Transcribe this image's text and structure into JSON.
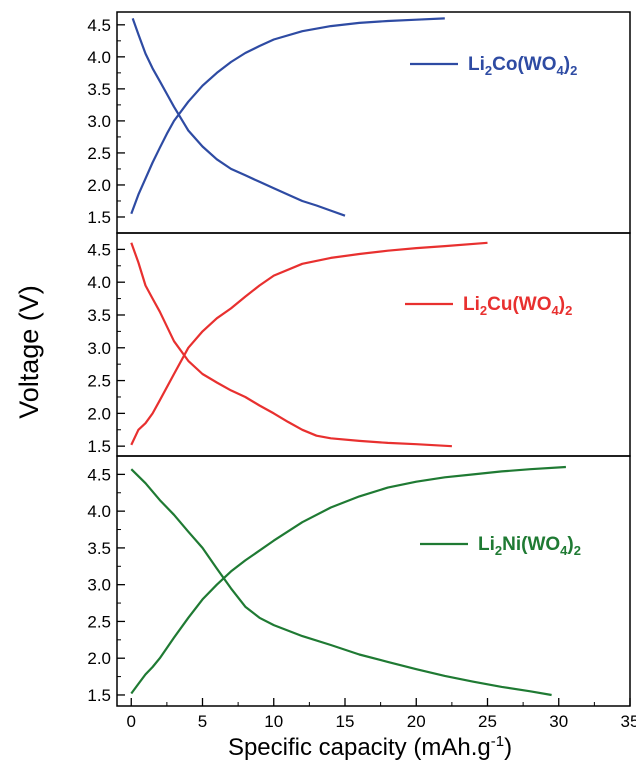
{
  "chart_data": [
    {
      "type": "line",
      "legend": {
        "text": "Li2Co(WO4)2",
        "parts": [
          "Li",
          "2",
          "Co(WO",
          "4",
          ")",
          "2"
        ],
        "position": "top-right"
      },
      "color": "#2e4ba3",
      "xlim": [
        -1,
        35
      ],
      "ylim": [
        1.25,
        4.7
      ],
      "y_ticks": [
        "1.5",
        "2.0",
        "2.5",
        "3.0",
        "3.5",
        "4.0",
        "4.5"
      ],
      "series": [
        {
          "points": [
            [
              0,
              1.55
            ],
            [
              0.5,
              1.85
            ],
            [
              1,
              2.1
            ],
            [
              1.5,
              2.35
            ],
            [
              2,
              2.58
            ],
            [
              2.5,
              2.8
            ],
            [
              3,
              3.0
            ],
            [
              4,
              3.3
            ],
            [
              5,
              3.55
            ],
            [
              6,
              3.75
            ],
            [
              7,
              3.92
            ],
            [
              8,
              4.06
            ],
            [
              9,
              4.17
            ],
            [
              10,
              4.27
            ],
            [
              12,
              4.4
            ],
            [
              14,
              4.48
            ],
            [
              16,
              4.53
            ],
            [
              18,
              4.56
            ],
            [
              20,
              4.58
            ],
            [
              22,
              4.6
            ]
          ]
        },
        {
          "points": [
            [
              0.1,
              4.6
            ],
            [
              0.5,
              4.35
            ],
            [
              1,
              4.05
            ],
            [
              1.5,
              3.82
            ],
            [
              2,
              3.62
            ],
            [
              2.5,
              3.42
            ],
            [
              3,
              3.22
            ],
            [
              4,
              2.85
            ],
            [
              5,
              2.6
            ],
            [
              6,
              2.4
            ],
            [
              7,
              2.25
            ],
            [
              8,
              2.15
            ],
            [
              9,
              2.05
            ],
            [
              10,
              1.95
            ],
            [
              11,
              1.85
            ],
            [
              12,
              1.75
            ],
            [
              13,
              1.68
            ],
            [
              14,
              1.6
            ],
            [
              15,
              1.52
            ]
          ]
        }
      ]
    },
    {
      "type": "line",
      "legend": {
        "text": "Li2Cu(WO4)2",
        "parts": [
          "Li",
          "2",
          "Cu(WO",
          "4",
          ")",
          "2"
        ],
        "position": "right"
      },
      "color": "#e8302f",
      "xlim": [
        -1,
        35
      ],
      "ylim": [
        1.35,
        4.75
      ],
      "y_ticks": [
        "1.5",
        "2.0",
        "2.5",
        "3.0",
        "3.5",
        "4.0",
        "4.5"
      ],
      "series": [
        {
          "points": [
            [
              0,
              1.52
            ],
            [
              0.5,
              1.75
            ],
            [
              1,
              1.85
            ],
            [
              1.5,
              2.0
            ],
            [
              2,
              2.2
            ],
            [
              3,
              2.6
            ],
            [
              4,
              3.0
            ],
            [
              5,
              3.25
            ],
            [
              6,
              3.45
            ],
            [
              7,
              3.6
            ],
            [
              8,
              3.78
            ],
            [
              9,
              3.95
            ],
            [
              10,
              4.1
            ],
            [
              12,
              4.28
            ],
            [
              14,
              4.37
            ],
            [
              16,
              4.43
            ],
            [
              18,
              4.48
            ],
            [
              20,
              4.52
            ],
            [
              22,
              4.55
            ],
            [
              25,
              4.6
            ]
          ]
        },
        {
          "points": [
            [
              0,
              4.6
            ],
            [
              0.5,
              4.3
            ],
            [
              1,
              3.95
            ],
            [
              1.5,
              3.75
            ],
            [
              2,
              3.55
            ],
            [
              3,
              3.1
            ],
            [
              4,
              2.8
            ],
            [
              5,
              2.6
            ],
            [
              6,
              2.47
            ],
            [
              7,
              2.35
            ],
            [
              8,
              2.25
            ],
            [
              9,
              2.12
            ],
            [
              10,
              2.0
            ],
            [
              11,
              1.87
            ],
            [
              12,
              1.75
            ],
            [
              13,
              1.66
            ],
            [
              14,
              1.62
            ],
            [
              16,
              1.58
            ],
            [
              18,
              1.55
            ],
            [
              20,
              1.53
            ],
            [
              22.5,
              1.5
            ]
          ]
        }
      ]
    },
    {
      "type": "line",
      "legend": {
        "text": "Li2Ni(WO4)2",
        "parts": [
          "Li",
          "2",
          "Ni(WO",
          "4",
          ")",
          "2"
        ],
        "position": "right"
      },
      "color": "#1f7a33",
      "xlim": [
        -1,
        35
      ],
      "ylim": [
        1.35,
        4.75
      ],
      "y_ticks": [
        "1.5",
        "2.0",
        "2.5",
        "3.0",
        "3.5",
        "4.0",
        "4.5"
      ],
      "series": [
        {
          "points": [
            [
              0,
              1.52
            ],
            [
              0.5,
              1.65
            ],
            [
              1,
              1.78
            ],
            [
              1.5,
              1.88
            ],
            [
              2,
              2.0
            ],
            [
              3,
              2.28
            ],
            [
              4,
              2.55
            ],
            [
              5,
              2.8
            ],
            [
              6,
              3.0
            ],
            [
              7,
              3.18
            ],
            [
              8,
              3.33
            ],
            [
              10,
              3.6
            ],
            [
              12,
              3.85
            ],
            [
              14,
              4.05
            ],
            [
              16,
              4.2
            ],
            [
              18,
              4.32
            ],
            [
              20,
              4.4
            ],
            [
              22,
              4.46
            ],
            [
              24,
              4.5
            ],
            [
              26,
              4.54
            ],
            [
              28,
              4.57
            ],
            [
              30.5,
              4.6
            ]
          ]
        },
        {
          "points": [
            [
              0,
              4.57
            ],
            [
              1,
              4.38
            ],
            [
              2,
              4.15
            ],
            [
              3,
              3.95
            ],
            [
              4,
              3.72
            ],
            [
              5,
              3.5
            ],
            [
              6,
              3.22
            ],
            [
              7,
              2.95
            ],
            [
              8,
              2.7
            ],
            [
              9,
              2.55
            ],
            [
              10,
              2.45
            ],
            [
              12,
              2.3
            ],
            [
              14,
              2.18
            ],
            [
              16,
              2.05
            ],
            [
              18,
              1.95
            ],
            [
              20,
              1.85
            ],
            [
              22,
              1.76
            ],
            [
              24,
              1.68
            ],
            [
              26,
              1.61
            ],
            [
              28,
              1.55
            ],
            [
              29.5,
              1.5
            ]
          ]
        }
      ]
    }
  ],
  "x_axis": {
    "label": "Specific capacity (mAh.g",
    "label_sup": "-1",
    "label_end": ")",
    "ticks": [
      "0",
      "5",
      "10",
      "15",
      "20",
      "25",
      "30",
      "35"
    ]
  },
  "y_axis": {
    "label": "Voltage (V)"
  }
}
